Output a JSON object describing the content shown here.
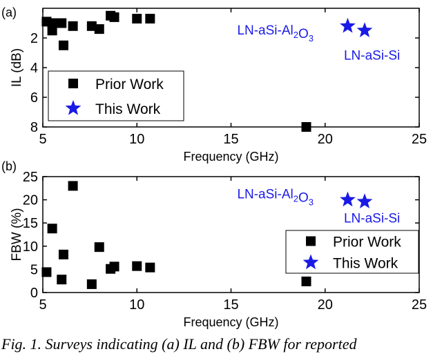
{
  "chart_data": [
    {
      "panel_label": "(a)",
      "type": "scatter",
      "xlabel": "Frequency  (GHz)",
      "ylabel": "IL (dB)",
      "xlim": [
        5,
        25
      ],
      "ylim": [
        0,
        8
      ],
      "y_inverted": true,
      "xticks": [
        5,
        10,
        15,
        20,
        25
      ],
      "yticks": [
        2,
        4,
        6,
        8
      ],
      "legend_position": "center-left",
      "series": [
        {
          "name": "Prior Work",
          "marker": "square",
          "color": "#000000",
          "points": [
            {
              "x": 5.2,
              "y": 0.9
            },
            {
              "x": 5.5,
              "y": 1.5
            },
            {
              "x": 5.5,
              "y": 1.0
            },
            {
              "x": 6.0,
              "y": 1.0
            },
            {
              "x": 6.1,
              "y": 2.5
            },
            {
              "x": 6.6,
              "y": 1.2
            },
            {
              "x": 7.6,
              "y": 1.2
            },
            {
              "x": 8.0,
              "y": 1.4
            },
            {
              "x": 8.6,
              "y": 0.5
            },
            {
              "x": 8.8,
              "y": 0.6
            },
            {
              "x": 10.0,
              "y": 0.7
            },
            {
              "x": 10.7,
              "y": 0.7
            },
            {
              "x": 19.0,
              "y": 8.0
            }
          ]
        },
        {
          "name": "This Work",
          "marker": "star",
          "color": "#1a1ae6",
          "points": [
            {
              "x": 21.2,
              "y": 1.2,
              "label": "LN-aSi-Al2O3"
            },
            {
              "x": 22.1,
              "y": 1.5,
              "label": "LN-aSi-Si"
            }
          ]
        }
      ]
    },
    {
      "panel_label": "(b)",
      "type": "scatter",
      "xlabel": "Frequency  (GHz)",
      "ylabel": "FBW (%)",
      "xlim": [
        5,
        25
      ],
      "ylim": [
        0,
        25
      ],
      "xticks": [
        5,
        10,
        15,
        20,
        25
      ],
      "yticks": [
        0,
        5,
        10,
        15,
        20,
        25
      ],
      "legend_position": "bottom-right",
      "series": [
        {
          "name": "Prior Work",
          "marker": "square",
          "color": "#000000",
          "points": [
            {
              "x": 5.2,
              "y": 4.4
            },
            {
              "x": 5.5,
              "y": 13.8
            },
            {
              "x": 6.0,
              "y": 2.8
            },
            {
              "x": 6.1,
              "y": 8.2
            },
            {
              "x": 6.6,
              "y": 23.0
            },
            {
              "x": 7.6,
              "y": 1.8
            },
            {
              "x": 8.0,
              "y": 9.8
            },
            {
              "x": 8.6,
              "y": 5.1
            },
            {
              "x": 8.8,
              "y": 5.6
            },
            {
              "x": 10.0,
              "y": 5.7
            },
            {
              "x": 10.7,
              "y": 5.4
            },
            {
              "x": 19.0,
              "y": 2.4
            }
          ]
        },
        {
          "name": "This Work",
          "marker": "star",
          "color": "#1a1ae6",
          "points": [
            {
              "x": 21.2,
              "y": 20.0,
              "label": "LN-aSi-Al2O3"
            },
            {
              "x": 22.1,
              "y": 19.6,
              "label": "LN-aSi-Si"
            }
          ]
        }
      ]
    }
  ],
  "caption": "Fig. 1. Surveys indicating (a) IL and (b) FBW for reported"
}
